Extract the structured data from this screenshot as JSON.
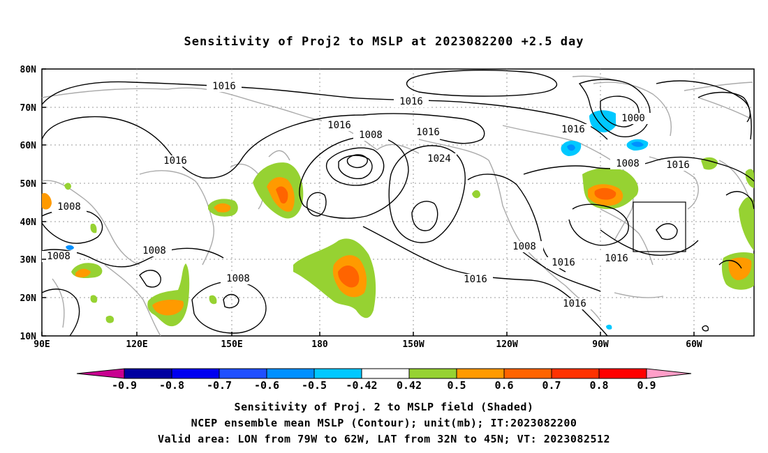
{
  "title": "Sensitivity of Proj2 to MSLP at 2023082200 +2.5 day",
  "map": {
    "lat_ticks": [
      "80N",
      "70N",
      "60N",
      "50N",
      "40N",
      "30N",
      "20N",
      "10N"
    ],
    "lon_ticks": [
      "90E",
      "120E",
      "150E",
      "180",
      "150W",
      "120W",
      "90W",
      "60W"
    ],
    "contour_labels": [
      "1016",
      "1016",
      "1016",
      "1008",
      "1016",
      "1024",
      "1016",
      "1000",
      "1016",
      "1008",
      "1016",
      "1008",
      "1008",
      "1008",
      "1008",
      "1008",
      "1016",
      "1016",
      "1016",
      "1016"
    ],
    "valid_area": {
      "lon_from": "79W",
      "lon_to": "62W",
      "lat_from": "32N",
      "lat_to": "45N"
    }
  },
  "colorbar": {
    "labels": [
      "-0.9",
      "-0.8",
      "-0.7",
      "-0.6",
      "-0.5",
      "-0.42",
      "0.42",
      "0.5",
      "0.6",
      "0.7",
      "0.8",
      "0.9"
    ],
    "colors": [
      "#0000a0",
      "#0000f0",
      "#2050ff",
      "#0090ff",
      "#00c8ff",
      "#ffffff",
      "#96d232",
      "#ff9a00",
      "#ff6400",
      "#ff3200",
      "#ff0000"
    ],
    "low_end_color": "#c80090",
    "high_end_color": "#ff9ec8"
  },
  "footer": {
    "line1": "Sensitivity of Proj. 2 to MSLP field (Shaded)",
    "line2": "NCEP ensemble mean MSLP (Contour); unit(mb); IT:2023082200",
    "line3": "Valid area: LON from 79W to 62W, LAT from 32N to 45N; VT: 2023082512"
  }
}
